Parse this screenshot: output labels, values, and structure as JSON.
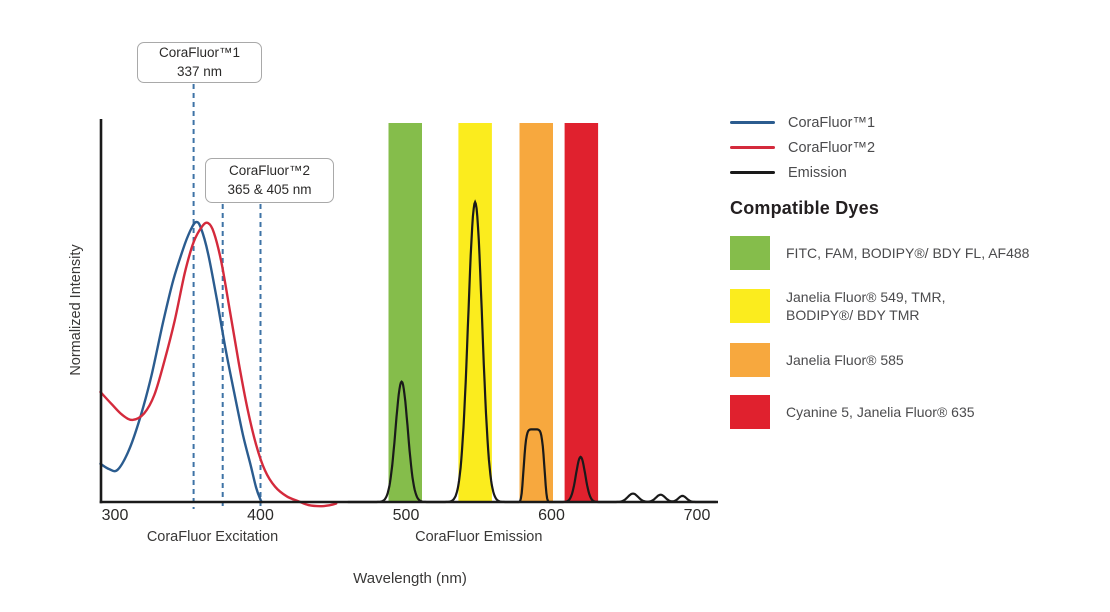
{
  "chart_data": {
    "type": "line",
    "xlabel": "Wavelength (nm)",
    "ylabel": "Normalized Intensity",
    "x_ticks": [
      300,
      400,
      500,
      600,
      700
    ],
    "x_range_nm": [
      290,
      714
    ],
    "y_range": [
      0,
      1
    ],
    "grid": false,
    "legend_position": "right",
    "marker_color": "#3e73a6",
    "section_labels": [
      {
        "text": "CoraFluor Excitation",
        "nm": 367
      },
      {
        "text": "CoraFluor Emission",
        "nm": 550
      }
    ],
    "series": [
      {
        "name": "CoraFluor™1",
        "kind": "excitation",
        "color": "#2b5c8f",
        "points": [
          [
            290,
            0.1
          ],
          [
            296,
            0.086
          ],
          [
            302,
            0.085
          ],
          [
            310,
            0.14
          ],
          [
            318,
            0.23
          ],
          [
            325,
            0.33
          ],
          [
            333,
            0.47
          ],
          [
            340,
            0.58
          ],
          [
            348,
            0.675
          ],
          [
            353,
            0.72
          ],
          [
            356,
            0.733
          ],
          [
            359,
            0.718
          ],
          [
            364,
            0.65
          ],
          [
            370,
            0.53
          ],
          [
            376,
            0.4
          ],
          [
            382,
            0.285
          ],
          [
            388,
            0.175
          ],
          [
            393,
            0.1
          ],
          [
            397,
            0.038
          ],
          [
            400,
            0.006
          ],
          [
            401,
            0.0
          ]
        ]
      },
      {
        "name": "CoraFluor™2",
        "kind": "excitation",
        "color": "#d42a3c",
        "points": [
          [
            290,
            0.288
          ],
          [
            298,
            0.255
          ],
          [
            305,
            0.228
          ],
          [
            312,
            0.215
          ],
          [
            320,
            0.232
          ],
          [
            327,
            0.28
          ],
          [
            334,
            0.37
          ],
          [
            341,
            0.475
          ],
          [
            348,
            0.6
          ],
          [
            354,
            0.68
          ],
          [
            360,
            0.722
          ],
          [
            364,
            0.73
          ],
          [
            368,
            0.705
          ],
          [
            373,
            0.63
          ],
          [
            379,
            0.5
          ],
          [
            385,
            0.365
          ],
          [
            391,
            0.245
          ],
          [
            397,
            0.15
          ],
          [
            403,
            0.083
          ],
          [
            410,
            0.04
          ],
          [
            418,
            0.015
          ],
          [
            426,
            0.002
          ],
          [
            433,
            -0.008
          ],
          [
            441,
            -0.011
          ],
          [
            448,
            -0.008
          ],
          [
            452,
            -0.004
          ]
        ]
      },
      {
        "name": "Emission",
        "kind": "emission",
        "color": "#1a1a1a",
        "peaks": [
          {
            "center": 497,
            "height": 0.315,
            "width": 4.2
          },
          {
            "center": 547.5,
            "height": 0.785,
            "width": 4.8
          },
          {
            "center": 588,
            "height": 0.19,
            "width": 7.5,
            "power": 6
          },
          {
            "center": 620,
            "height": 0.118,
            "width": 3.2
          },
          {
            "center": 656,
            "height": 0.022,
            "width": 3.5
          },
          {
            "center": 675,
            "height": 0.019,
            "width": 3.2
          },
          {
            "center": 690,
            "height": 0.016,
            "width": 2.8
          }
        ]
      }
    ],
    "filter_bands": [
      {
        "name": "green",
        "nm": [
          488,
          511
        ],
        "color": "#85bd4b"
      },
      {
        "name": "yellow",
        "nm": [
          536,
          559
        ],
        "color": "#fbec1e"
      },
      {
        "name": "orange",
        "nm": [
          578,
          601
        ],
        "color": "#f7a83e"
      },
      {
        "name": "red",
        "nm": [
          609,
          632
        ],
        "color": "#e0212e"
      }
    ],
    "annotations": [
      {
        "title": "CoraFluor™1",
        "value": "337 nm",
        "lines_nm": [
          354
        ]
      },
      {
        "title": "CoraFluor™2",
        "value": "365 & 405 nm",
        "lines_nm": [
          374,
          400
        ]
      }
    ]
  },
  "legend": {
    "series": [
      {
        "label": "CoraFluor™1",
        "color": "#2b5c8f"
      },
      {
        "label": "CoraFluor™2",
        "color": "#d42a3c"
      },
      {
        "label": "Emission",
        "color": "#1a1a1a"
      }
    ],
    "dyes_heading": "Compatible Dyes",
    "dyes": [
      {
        "label": "FITC, FAM, BODIPY®/ BDY FL, AF488",
        "color": "#85bd4b"
      },
      {
        "label": "Janelia Fluor® 549, TMR, BODIPY®/ BDY TMR",
        "color": "#fbec1e"
      },
      {
        "label": "Janelia Fluor® 585",
        "color": "#f7a83e"
      },
      {
        "label": "Cyanine 5, Janelia Fluor® 635",
        "color": "#e0212e"
      }
    ]
  }
}
